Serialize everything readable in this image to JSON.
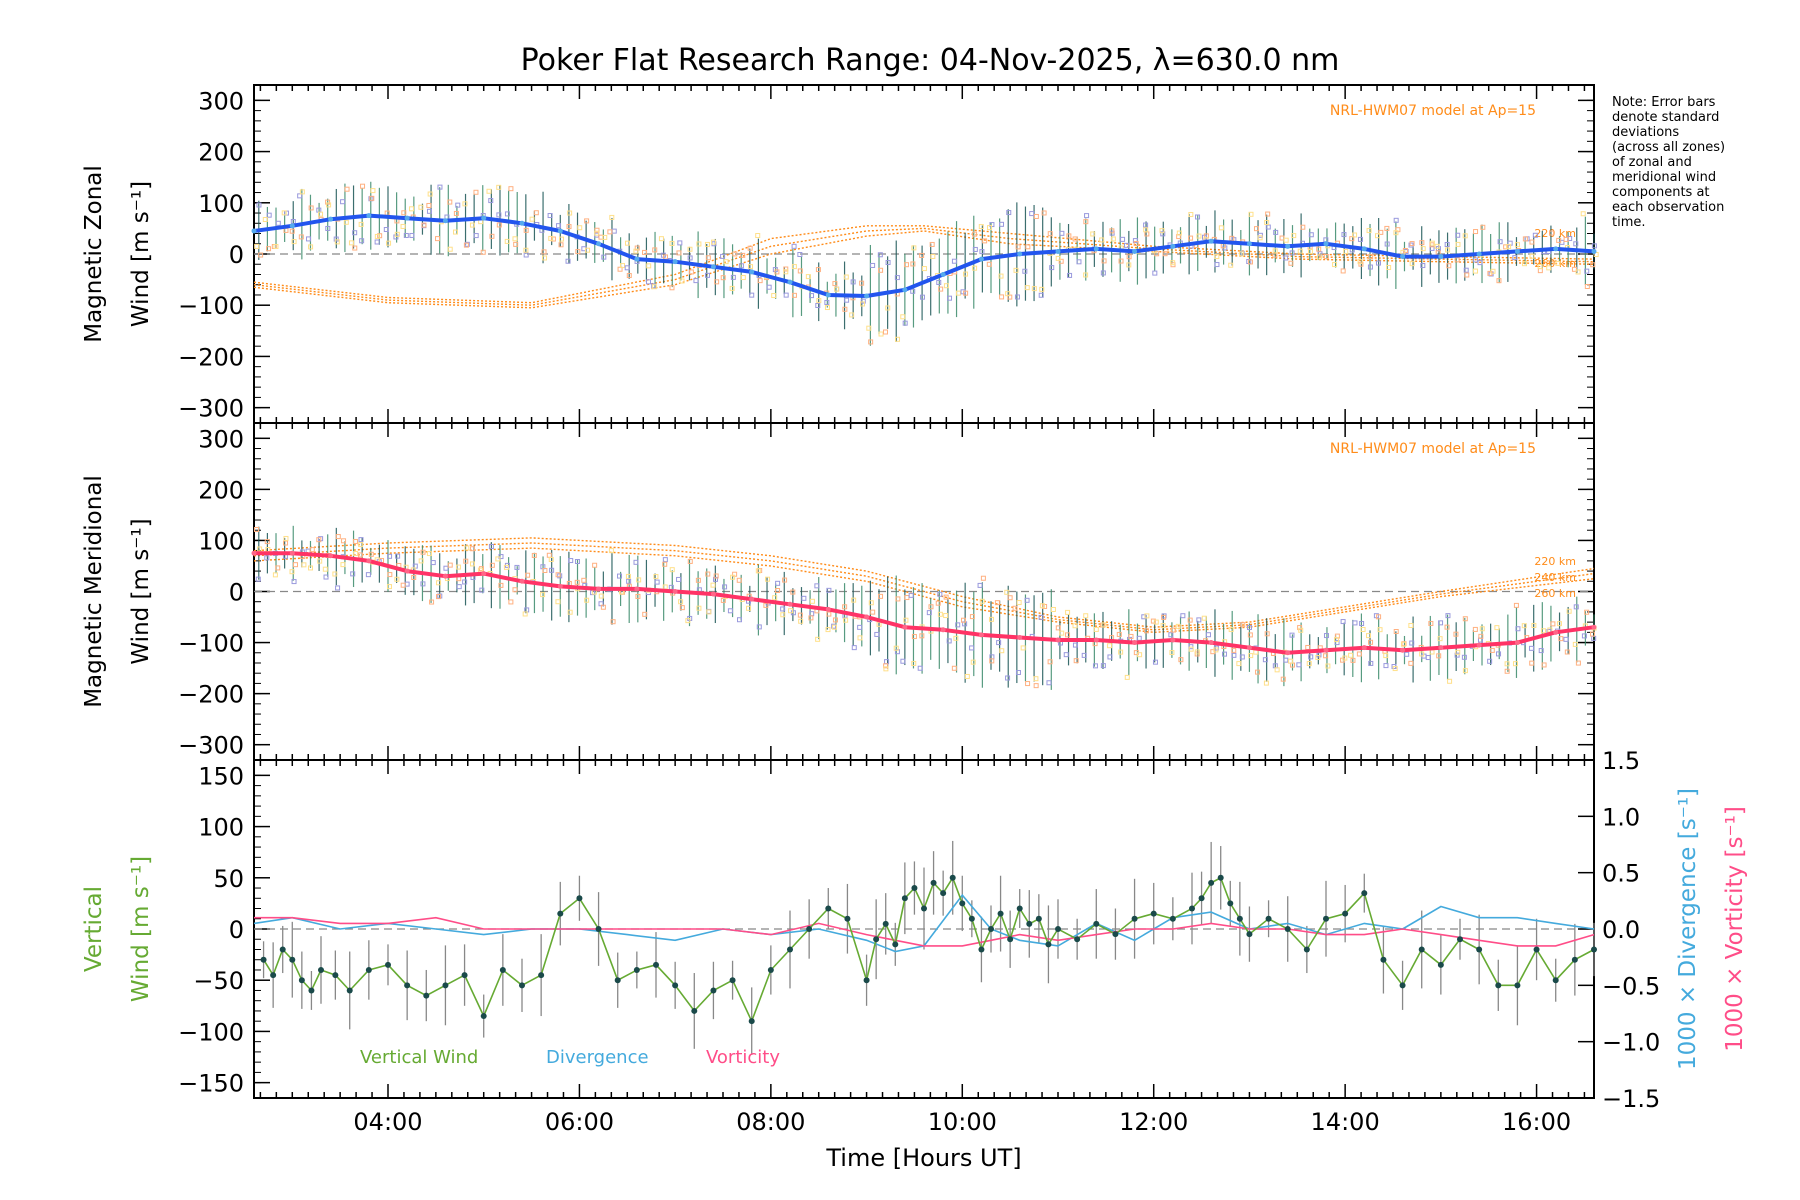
{
  "title": "Poker Flat Research Range: 04-Nov-2025, λ=630.0 nm",
  "note": [
    "Note: Error bars",
    "denote standard",
    "deviations",
    "(across all zones)",
    "of zonal and",
    "meridional wind",
    "components at",
    "each observation",
    "time."
  ],
  "colors": {
    "zonal": "#2255ee",
    "zonal_fill": "#55aaee",
    "meridional": "#ff3366",
    "model": "#ff8c1a",
    "points": "#9999dd",
    "points_alt": "#ffb080",
    "points_y": "#ffe08a",
    "vertical": "#66aa33",
    "vertical_pt": "#1a4a4a",
    "divergence": "#44aadd",
    "vorticity": "#ff4d88",
    "errbar": "#888888",
    "zero": "#888888"
  },
  "chart_data": [
    {
      "id": "zonal",
      "type": "line",
      "ylabel": [
        "Magnetic Zonal",
        "Wind [m s⁻¹]"
      ],
      "ylim": [
        -330,
        330
      ],
      "yticks": [
        "300",
        "200",
        "100",
        "0",
        "−100",
        "−200",
        "−300"
      ],
      "ytick_values": [
        300,
        200,
        100,
        0,
        -100,
        -200,
        -300
      ],
      "model_label": "NRL-HWM07 model at Ap=15",
      "model_alt_labels": [
        "220 km",
        "260 km"
      ],
      "series": [
        {
          "name": "Zonal wind",
          "x": [
            2.6,
            3.0,
            3.4,
            3.8,
            4.2,
            4.6,
            5.0,
            5.4,
            5.8,
            6.2,
            6.6,
            7.0,
            7.4,
            7.8,
            8.2,
            8.6,
            9.0,
            9.4,
            9.8,
            10.2,
            10.6,
            11.0,
            11.4,
            11.8,
            12.2,
            12.6,
            13.0,
            13.4,
            13.8,
            14.2,
            14.6,
            15.0,
            15.4,
            15.8,
            16.2,
            16.6
          ],
          "y": [
            45,
            55,
            68,
            75,
            70,
            65,
            70,
            60,
            45,
            20,
            -10,
            -15,
            -25,
            -35,
            -55,
            -80,
            -82,
            -70,
            -40,
            -10,
            0,
            5,
            10,
            5,
            15,
            25,
            20,
            15,
            20,
            10,
            -5,
            -5,
            0,
            5,
            10,
            5
          ]
        }
      ],
      "model": [
        {
          "name": "220 km",
          "x": [
            2.6,
            4.0,
            5.5,
            7.0,
            8.0,
            9.0,
            9.6,
            10.5,
            12.0,
            13.5,
            15.0,
            16.6
          ],
          "y": [
            -55,
            -85,
            -95,
            -40,
            30,
            55,
            55,
            40,
            15,
            0,
            -5,
            -10
          ]
        },
        {
          "name": "240 km",
          "x": [
            2.6,
            4.0,
            5.5,
            7.0,
            8.0,
            9.0,
            9.6,
            10.5,
            12.0,
            13.5,
            15.0,
            16.6
          ],
          "y": [
            -60,
            -90,
            -100,
            -50,
            15,
            45,
            50,
            30,
            10,
            -5,
            -10,
            -15
          ]
        },
        {
          "name": "260 km",
          "x": [
            2.6,
            4.0,
            5.5,
            7.0,
            8.0,
            9.0,
            9.6,
            10.5,
            12.0,
            13.5,
            15.0,
            16.6
          ],
          "y": [
            -65,
            -95,
            -105,
            -60,
            0,
            35,
            45,
            20,
            5,
            -10,
            -15,
            -20
          ]
        }
      ]
    },
    {
      "id": "meridional",
      "type": "line",
      "ylabel": [
        "Magnetic Meridional",
        "Wind [m s⁻¹]"
      ],
      "ylim": [
        -330,
        330
      ],
      "yticks": [
        "300",
        "200",
        "100",
        "0",
        "−100",
        "−200",
        "−300"
      ],
      "ytick_values": [
        300,
        200,
        100,
        0,
        -100,
        -200,
        -300
      ],
      "model_label": "NRL-HWM07 model at Ap=15",
      "model_alt_labels": [
        "220 km",
        "240 km",
        "260 km"
      ],
      "series": [
        {
          "name": "Meridional wind",
          "x": [
            2.6,
            3.0,
            3.4,
            3.8,
            4.2,
            4.6,
            5.0,
            5.4,
            5.8,
            6.2,
            6.6,
            7.0,
            7.4,
            7.8,
            8.2,
            8.6,
            9.0,
            9.4,
            9.8,
            10.2,
            10.6,
            11.0,
            11.4,
            11.8,
            12.2,
            12.6,
            13.0,
            13.4,
            13.8,
            14.2,
            14.6,
            15.0,
            15.4,
            15.8,
            16.2,
            16.6
          ],
          "y": [
            75,
            75,
            70,
            60,
            40,
            30,
            35,
            20,
            10,
            5,
            5,
            0,
            -5,
            -15,
            -25,
            -35,
            -50,
            -70,
            -75,
            -85,
            -90,
            -95,
            -95,
            -100,
            -95,
            -100,
            -110,
            -120,
            -115,
            -110,
            -115,
            -110,
            -105,
            -100,
            -80,
            -70
          ]
        }
      ],
      "model": [
        {
          "name": "220 km",
          "x": [
            2.6,
            4.0,
            5.5,
            7.0,
            8.0,
            9.0,
            10.0,
            11.0,
            12.0,
            13.0,
            14.0,
            15.0,
            16.6
          ],
          "y": [
            80,
            95,
            105,
            90,
            70,
            40,
            -10,
            -50,
            -70,
            -60,
            -30,
            0,
            45
          ]
        },
        {
          "name": "240 km",
          "x": [
            2.6,
            4.0,
            5.5,
            7.0,
            8.0,
            9.0,
            10.0,
            11.0,
            12.0,
            13.0,
            14.0,
            15.0,
            16.6
          ],
          "y": [
            70,
            85,
            95,
            80,
            60,
            30,
            -20,
            -55,
            -75,
            -65,
            -35,
            -5,
            35
          ]
        },
        {
          "name": "260 km",
          "x": [
            2.6,
            4.0,
            5.5,
            7.0,
            8.0,
            9.0,
            10.0,
            11.0,
            12.0,
            13.0,
            14.0,
            15.0,
            16.6
          ],
          "y": [
            60,
            75,
            85,
            70,
            50,
            20,
            -30,
            -60,
            -80,
            -70,
            -40,
            -10,
            25
          ]
        }
      ]
    },
    {
      "id": "vertical",
      "type": "line",
      "ylabel": [
        "Vertical",
        "Wind [m s⁻¹]"
      ],
      "ylim": [
        -165,
        165
      ],
      "yticks": [
        "150",
        "100",
        "50",
        "0",
        "−50",
        "−100",
        "−150"
      ],
      "ytick_values": [
        150,
        100,
        50,
        0,
        -50,
        -100,
        -150
      ],
      "right_ylim": [
        -1.5,
        1.5
      ],
      "right_yticks": [
        "1.5",
        "1.0",
        "0.5",
        "0.0",
        "−0.5",
        "−1.0",
        "−1.5"
      ],
      "right_ytick_values": [
        1.5,
        1.0,
        0.5,
        0.0,
        -0.5,
        -1.0,
        -1.5
      ],
      "right_label_div": "1000 × Divergence [s⁻¹]",
      "right_label_vor": "1000 × Vorticity [s⁻¹]",
      "legend": [
        "Vertical Wind",
        "Divergence",
        "Vorticity"
      ],
      "xlabel": "Time [Hours UT]",
      "xticks": [
        "04:00",
        "06:00",
        "08:00",
        "10:00",
        "12:00",
        "14:00",
        "16:00"
      ],
      "xtick_values": [
        4,
        6,
        8,
        10,
        12,
        14,
        16
      ],
      "xlim": [
        2.6,
        16.6
      ],
      "series": [
        {
          "name": "Vertical Wind",
          "x": [
            2.7,
            2.8,
            2.9,
            3.0,
            3.1,
            3.2,
            3.3,
            3.45,
            3.6,
            3.8,
            4.0,
            4.2,
            4.4,
            4.6,
            4.8,
            5.0,
            5.2,
            5.4,
            5.6,
            5.8,
            6.0,
            6.2,
            6.4,
            6.6,
            6.8,
            7.0,
            7.2,
            7.4,
            7.6,
            7.8,
            8.0,
            8.2,
            8.4,
            8.6,
            8.8,
            9.0,
            9.1,
            9.2,
            9.3,
            9.4,
            9.5,
            9.6,
            9.7,
            9.8,
            9.9,
            10.0,
            10.1,
            10.2,
            10.3,
            10.4,
            10.5,
            10.6,
            10.7,
            10.8,
            10.9,
            11.0,
            11.2,
            11.4,
            11.6,
            11.8,
            12.0,
            12.2,
            12.4,
            12.5,
            12.6,
            12.7,
            12.8,
            12.9,
            13.0,
            13.2,
            13.4,
            13.6,
            13.8,
            14.0,
            14.2,
            14.4,
            14.6,
            14.8,
            15.0,
            15.2,
            15.4,
            15.6,
            15.8,
            16.0,
            16.2,
            16.4,
            16.6
          ],
          "y": [
            -30,
            -45,
            -20,
            -30,
            -50,
            -60,
            -40,
            -45,
            -60,
            -40,
            -35,
            -55,
            -65,
            -55,
            -45,
            -85,
            -40,
            -55,
            -45,
            15,
            30,
            0,
            -50,
            -40,
            -35,
            -55,
            -80,
            -60,
            -50,
            -90,
            -40,
            -20,
            0,
            20,
            10,
            -50,
            -10,
            5,
            -15,
            30,
            40,
            20,
            45,
            35,
            50,
            25,
            10,
            -20,
            0,
            15,
            -10,
            20,
            5,
            10,
            -15,
            0,
            -10,
            5,
            -5,
            10,
            15,
            10,
            20,
            30,
            45,
            50,
            25,
            10,
            -5,
            10,
            0,
            -20,
            10,
            15,
            35,
            -30,
            -55,
            -20,
            -35,
            -10,
            -20,
            -55,
            -55,
            -20,
            -50,
            -30,
            -20
          ]
        },
        {
          "name": "Divergence",
          "x": [
            2.6,
            3.0,
            3.5,
            4.0,
            4.5,
            5.0,
            5.5,
            6.0,
            6.5,
            7.0,
            7.5,
            8.0,
            8.5,
            9.0,
            9.3,
            9.6,
            10.0,
            10.3,
            10.6,
            11.0,
            11.4,
            11.8,
            12.2,
            12.6,
            13.0,
            13.4,
            13.8,
            14.2,
            14.6,
            15.0,
            15.4,
            15.8,
            16.2,
            16.6
          ],
          "y": [
            0.05,
            0.1,
            0.0,
            0.05,
            0.0,
            -0.05,
            0.0,
            0.0,
            -0.05,
            -0.1,
            0.0,
            -0.05,
            0.0,
            -0.1,
            -0.2,
            -0.15,
            0.3,
            0.0,
            -0.1,
            -0.15,
            0.05,
            -0.1,
            0.1,
            0.15,
            0.0,
            0.05,
            -0.05,
            0.05,
            0.0,
            0.2,
            0.1,
            0.1,
            0.05,
            0.0
          ]
        },
        {
          "name": "Vorticity",
          "x": [
            2.6,
            3.0,
            3.5,
            4.0,
            4.5,
            5.0,
            5.5,
            6.0,
            6.5,
            7.0,
            7.5,
            8.0,
            8.5,
            9.0,
            9.3,
            9.6,
            10.0,
            10.3,
            10.6,
            11.0,
            11.4,
            11.8,
            12.2,
            12.6,
            13.0,
            13.4,
            13.8,
            14.2,
            14.6,
            15.0,
            15.4,
            15.8,
            16.2,
            16.6
          ],
          "y": [
            0.1,
            0.1,
            0.05,
            0.05,
            0.1,
            0.0,
            0.0,
            0.0,
            0.0,
            0.0,
            0.0,
            -0.05,
            0.05,
            -0.05,
            -0.1,
            -0.15,
            -0.15,
            -0.1,
            -0.05,
            -0.1,
            -0.05,
            0.0,
            0.0,
            0.05,
            0.0,
            0.0,
            -0.05,
            -0.05,
            0.0,
            -0.05,
            -0.1,
            -0.15,
            -0.15,
            -0.05
          ]
        }
      ]
    }
  ]
}
